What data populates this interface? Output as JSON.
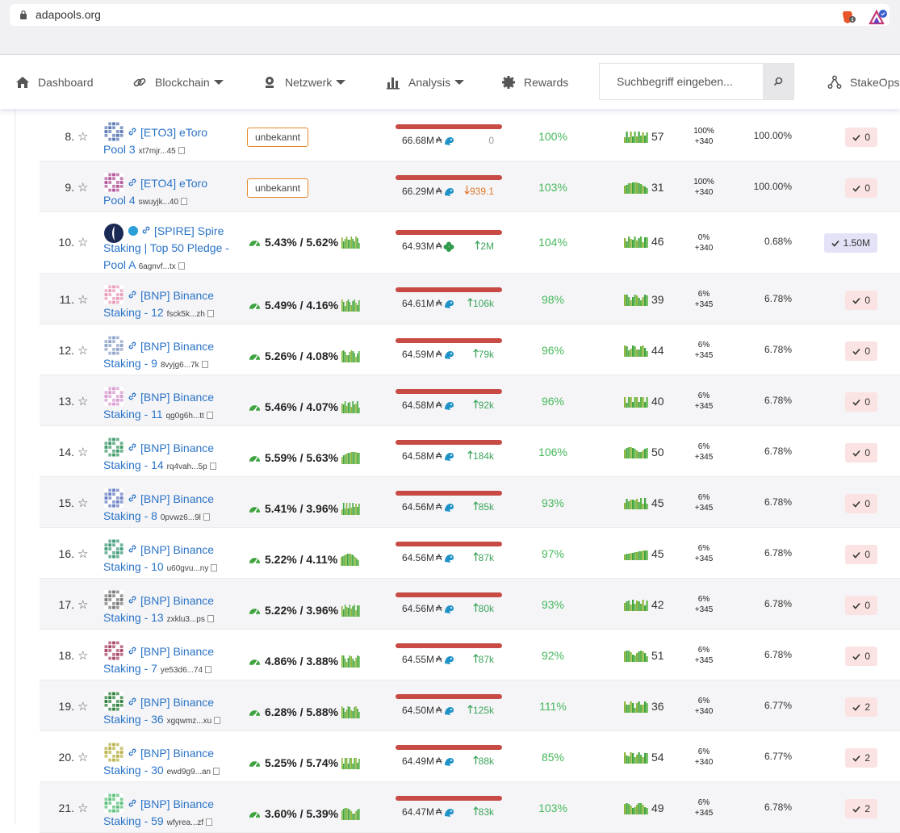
{
  "browser": {
    "url": "adapools.org",
    "extension_badge": "4"
  },
  "nav": {
    "items": [
      {
        "label": "Dashboard",
        "icon": "home-icon"
      },
      {
        "label": "Blockchain",
        "icon": "chain-icon"
      },
      {
        "label": "Netzwerk",
        "icon": "network-icon"
      },
      {
        "label": "Analysis",
        "icon": "bar-chart-icon"
      },
      {
        "label": "Rewards",
        "icon": "gear-icon"
      },
      {
        "label": "StakeOps",
        "icon": "nodes-icon"
      }
    ],
    "search_placeholder": "Suchbegriff eingeben..."
  },
  "pools": [
    {
      "rank": "8.",
      "name_l1": "[ETO3] eToro",
      "name_l2": "Pool 3",
      "id": "xt7mjr...45",
      "unknown": "unbekannt",
      "stake": "66.68M",
      "delta": "0",
      "delta_dir": "zero",
      "perf": "100%",
      "blocks": "57",
      "margin": "100%",
      "fee": "+340",
      "pledge": "100.00%",
      "votes": "0",
      "icon_color": "#5a78b5"
    },
    {
      "rank": "9.",
      "name_l1": "[ETO4] eToro",
      "name_l2": "Pool 4",
      "id": "swuyjk...40",
      "unknown": "unbekannt",
      "stake": "66.29M",
      "delta": "939.1",
      "delta_dir": "down",
      "perf": "103%",
      "blocks": "31",
      "margin": "100%",
      "fee": "+340",
      "pledge": "100.00%",
      "votes": "0",
      "icon_color": "#b0569a"
    },
    {
      "rank": "10.",
      "name_l1": "[SPIRE] Spire",
      "name_l2": "Staking | Top 50 Pledge -",
      "name_l3": "Pool A",
      "id": "6agnvf...tx",
      "roa": "5.43% / 5.62%",
      "stake": "64.93M",
      "delta": "2M",
      "delta_dir": "up",
      "perf": "104%",
      "blocks": "46",
      "margin": "0%",
      "fee": "+340",
      "pledge": "0.68%",
      "votes": "1.50M",
      "telegram": true,
      "icon_color": "#1b2a55"
    },
    {
      "rank": "11.",
      "name_l1": "[BNP] Binance",
      "name_l2": "Staking - 12",
      "id": "fsck5k...zh",
      "roa": "5.49% / 4.16%",
      "stake": "64.61M",
      "delta": "106k",
      "delta_dir": "up",
      "perf": "98%",
      "blocks": "39",
      "margin": "6%",
      "fee": "+345",
      "pledge": "6.78%",
      "votes": "0",
      "icon_color": "#e59ab8"
    },
    {
      "rank": "12.",
      "name_l1": "[BNP] Binance",
      "name_l2": "Staking - 9",
      "id": "8vyjg6...7k",
      "roa": "5.26% / 4.08%",
      "stake": "64.59M",
      "delta": "79k",
      "delta_dir": "up",
      "perf": "96%",
      "blocks": "44",
      "margin": "6%",
      "fee": "+345",
      "pledge": "6.78%",
      "votes": "0",
      "icon_color": "#8fa3c8"
    },
    {
      "rank": "13.",
      "name_l1": "[BNP] Binance",
      "name_l2": "Staking - 11",
      "id": "qg0g6h...tt",
      "roa": "5.46% / 4.07%",
      "stake": "64.58M",
      "delta": "92k",
      "delta_dir": "up",
      "perf": "96%",
      "blocks": "40",
      "margin": "6%",
      "fee": "+345",
      "pledge": "6.78%",
      "votes": "0",
      "icon_color": "#d79ad0"
    },
    {
      "rank": "14.",
      "name_l1": "[BNP] Binance",
      "name_l2": "Staking - 14",
      "id": "rq4vah...5p",
      "roa": "5.59% / 5.63%",
      "stake": "64.58M",
      "delta": "184k",
      "delta_dir": "up",
      "perf": "106%",
      "blocks": "50",
      "margin": "6%",
      "fee": "+345",
      "pledge": "6.78%",
      "votes": "0",
      "icon_color": "#3f9a6a"
    },
    {
      "rank": "15.",
      "name_l1": "[BNP] Binance",
      "name_l2": "Staking - 8",
      "id": "0pvwz6...9l",
      "roa": "5.41% / 3.96%",
      "stake": "64.56M",
      "delta": "85k",
      "delta_dir": "up",
      "perf": "93%",
      "blocks": "45",
      "margin": "6%",
      "fee": "+345",
      "pledge": "6.78%",
      "votes": "0",
      "icon_color": "#6a7fc4"
    },
    {
      "rank": "16.",
      "name_l1": "[BNP] Binance",
      "name_l2": "Staking - 10",
      "id": "u60gvu...ny",
      "roa": "5.22% / 4.11%",
      "stake": "64.56M",
      "delta": "87k",
      "delta_dir": "up",
      "perf": "97%",
      "blocks": "45",
      "margin": "6%",
      "fee": "+345",
      "pledge": "6.78%",
      "votes": "0",
      "icon_color": "#3f9a78"
    },
    {
      "rank": "17.",
      "name_l1": "[BNP] Binance",
      "name_l2": "Staking - 13",
      "id": "zxklu3...ps",
      "roa": "5.22% / 3.96%",
      "stake": "64.56M",
      "delta": "80k",
      "delta_dir": "up",
      "perf": "93%",
      "blocks": "42",
      "margin": "6%",
      "fee": "+345",
      "pledge": "6.78%",
      "votes": "0",
      "icon_color": "#777777"
    },
    {
      "rank": "18.",
      "name_l1": "[BNP] Binance",
      "name_l2": "Staking - 7",
      "id": "ye53d6...74",
      "roa": "4.86% / 3.88%",
      "stake": "64.55M",
      "delta": "87k",
      "delta_dir": "up",
      "perf": "92%",
      "blocks": "51",
      "margin": "6%",
      "fee": "+345",
      "pledge": "6.78%",
      "votes": "0",
      "icon_color": "#a8456a"
    },
    {
      "rank": "19.",
      "name_l1": "[BNP] Binance",
      "name_l2": "Staking - 36",
      "id": "xgqwmz...xu",
      "roa": "6.28% / 5.88%",
      "stake": "64.50M",
      "delta": "125k",
      "delta_dir": "up",
      "perf": "111%",
      "blocks": "36",
      "margin": "6%",
      "fee": "+340",
      "pledge": "6.77%",
      "votes": "2",
      "icon_color": "#2f7f3a"
    },
    {
      "rank": "20.",
      "name_l1": "[BNP] Binance",
      "name_l2": "Staking - 30",
      "id": "ewd9g9...an",
      "roa": "5.25% / 5.74%",
      "stake": "64.49M",
      "delta": "88k",
      "delta_dir": "up",
      "perf": "85%",
      "blocks": "54",
      "margin": "6%",
      "fee": "+340",
      "pledge": "6.77%",
      "votes": "2",
      "icon_color": "#b9b24a"
    },
    {
      "rank": "21.",
      "name_l1": "[BNP] Binance",
      "name_l2": "Staking - 59",
      "id": "wfyrea...zf",
      "roa": "3.60% / 5.39%",
      "stake": "64.47M",
      "delta": "83k",
      "delta_dir": "up",
      "perf": "103%",
      "blocks": "49",
      "margin": "6%",
      "fee": "+345",
      "pledge": "6.78%",
      "votes": "2",
      "icon_color": "#5bbf7a"
    }
  ],
  "colors": {
    "link": "#2a73c7",
    "good": "#46b85c",
    "saturation": "#c74a44",
    "vote_bg": "#fbe3e3"
  }
}
